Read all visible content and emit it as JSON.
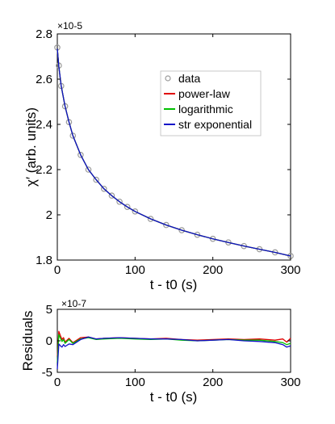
{
  "chart_data": [
    {
      "type": "line",
      "title": "",
      "xlabel": "t - t0 (s)",
      "ylabel": "χ′ (arb. units)",
      "y_multiplier": "×10-5",
      "xlim": [
        0,
        300
      ],
      "ylim": [
        1.8,
        2.8
      ],
      "x_ticks": [
        0,
        100,
        200,
        300
      ],
      "y_ticks": [
        1.8,
        2,
        2.2,
        2.4,
        2.6,
        2.8
      ],
      "x_tick_labels": [
        "0",
        "100",
        "200",
        "300"
      ],
      "y_tick_labels": [
        "1.8",
        "2",
        "2.2",
        "2.4",
        "2.6",
        "2.8"
      ],
      "legend_position": "top-right",
      "grid": false,
      "series": [
        {
          "name": "data",
          "color": "#9a9a9a",
          "marker": "circle",
          "x": [
            0,
            2,
            5,
            10,
            15,
            20,
            30,
            40,
            50,
            60,
            70,
            80,
            90,
            100,
            120,
            140,
            160,
            180,
            200,
            220,
            240,
            260,
            280,
            300
          ],
          "y": [
            2.74,
            2.66,
            2.57,
            2.48,
            2.41,
            2.35,
            2.265,
            2.2,
            2.155,
            2.115,
            2.085,
            2.058,
            2.035,
            2.015,
            1.982,
            1.955,
            1.932,
            1.912,
            1.894,
            1.878,
            1.862,
            1.848,
            1.834,
            1.818
          ]
        },
        {
          "name": "power-law",
          "color": "#e00000",
          "x": [
            0,
            2,
            5,
            10,
            15,
            20,
            30,
            40,
            50,
            60,
            70,
            80,
            90,
            100,
            120,
            140,
            160,
            180,
            200,
            220,
            240,
            260,
            280,
            300
          ],
          "y": [
            2.735,
            2.655,
            2.57,
            2.48,
            2.41,
            2.35,
            2.265,
            2.2,
            2.155,
            2.115,
            2.085,
            2.058,
            2.035,
            2.015,
            1.982,
            1.955,
            1.932,
            1.912,
            1.894,
            1.878,
            1.862,
            1.848,
            1.834,
            1.818
          ]
        },
        {
          "name": "logarithmic",
          "color": "#00c000",
          "x": [
            0,
            2,
            5,
            10,
            15,
            20,
            30,
            40,
            50,
            60,
            70,
            80,
            90,
            100,
            120,
            140,
            160,
            180,
            200,
            220,
            240,
            260,
            280,
            300
          ],
          "y": [
            2.735,
            2.655,
            2.57,
            2.48,
            2.41,
            2.35,
            2.265,
            2.2,
            2.155,
            2.115,
            2.085,
            2.058,
            2.035,
            2.015,
            1.982,
            1.955,
            1.932,
            1.912,
            1.894,
            1.878,
            1.862,
            1.848,
            1.834,
            1.818
          ]
        },
        {
          "name": "str exponential",
          "color": "#1010c8",
          "x": [
            0,
            2,
            5,
            10,
            15,
            20,
            30,
            40,
            50,
            60,
            70,
            80,
            90,
            100,
            120,
            140,
            160,
            180,
            200,
            220,
            240,
            260,
            280,
            300
          ],
          "y": [
            2.735,
            2.655,
            2.57,
            2.48,
            2.41,
            2.35,
            2.265,
            2.2,
            2.155,
            2.115,
            2.085,
            2.058,
            2.035,
            2.015,
            1.982,
            1.955,
            1.932,
            1.912,
            1.894,
            1.878,
            1.862,
            1.848,
            1.834,
            1.818
          ]
        }
      ]
    },
    {
      "type": "line",
      "title": "",
      "xlabel": "t - t0 (s)",
      "ylabel": "Residuals",
      "y_multiplier": "×10-7",
      "xlim": [
        0,
        300
      ],
      "ylim": [
        -5,
        5
      ],
      "x_ticks": [
        0,
        100,
        200,
        300
      ],
      "y_ticks": [
        -5,
        0,
        5
      ],
      "x_tick_labels": [
        "0",
        "100",
        "200",
        "300"
      ],
      "y_tick_labels": [
        "-5",
        "0",
        "5"
      ],
      "grid": false,
      "series": [
        {
          "color": "#e00000",
          "x": [
            0,
            2,
            4,
            6,
            8,
            10,
            15,
            20,
            30,
            40,
            50,
            60,
            80,
            100,
            120,
            140,
            160,
            180,
            200,
            220,
            240,
            260,
            280,
            290,
            295,
            300
          ],
          "y": [
            -2.5,
            1.5,
            0.8,
            0.2,
            0.5,
            -0.2,
            0.4,
            -0.3,
            0.5,
            0.6,
            0.3,
            0.4,
            0.5,
            0.4,
            0.3,
            0.4,
            0.2,
            0.1,
            0.2,
            0.3,
            0.2,
            0.3,
            0.1,
            0.3,
            -0.2,
            0.4
          ]
        },
        {
          "color": "#00c000",
          "x": [
            0,
            2,
            4,
            6,
            8,
            10,
            15,
            20,
            30,
            40,
            50,
            60,
            80,
            100,
            120,
            140,
            160,
            180,
            200,
            220,
            240,
            260,
            280,
            290,
            295,
            300
          ],
          "y": [
            -3.5,
            1.0,
            0.4,
            -0.1,
            0.2,
            -0.4,
            0.2,
            -0.4,
            0.3,
            0.5,
            0.2,
            0.3,
            0.4,
            0.3,
            0.2,
            0.3,
            0.1,
            0.0,
            0.1,
            0.2,
            0.1,
            0.1,
            -0.1,
            -0.3,
            -0.6,
            -0.4
          ]
        },
        {
          "color": "#1010c8",
          "x": [
            0,
            2,
            4,
            6,
            8,
            10,
            15,
            20,
            30,
            40,
            50,
            60,
            80,
            100,
            120,
            140,
            160,
            180,
            200,
            220,
            240,
            260,
            280,
            290,
            295,
            300
          ],
          "y": [
            -4.5,
            -0.5,
            -0.8,
            -1.0,
            -0.6,
            -0.9,
            -0.5,
            -0.6,
            0.2,
            0.6,
            0.3,
            0.4,
            0.5,
            0.4,
            0.3,
            0.3,
            0.2,
            0.0,
            0.1,
            0.2,
            0.0,
            -0.1,
            -0.3,
            -0.6,
            -1.0,
            -0.8
          ]
        }
      ]
    }
  ]
}
